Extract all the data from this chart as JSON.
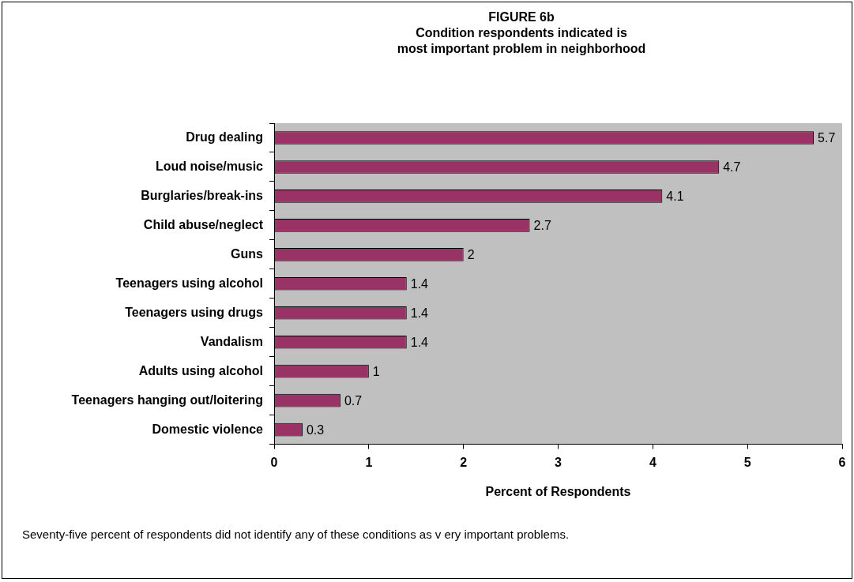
{
  "chart_data": {
    "type": "bar",
    "orientation": "horizontal",
    "title": "FIGURE 6b",
    "subtitle": "Condition respondents indicated is\nmost important problem in neighborhood",
    "xlabel": "Percent of Respondents",
    "categories": [
      "Drug dealing",
      "Loud noise/music",
      "Burglaries/break-ins",
      "Child abuse/neglect",
      "Guns",
      "Teenagers using alcohol",
      "Teenagers using drugs",
      "Vandalism",
      "Adults using alcohol",
      "Teenagers hanging out/loitering",
      "Domestic violence"
    ],
    "values": [
      5.7,
      4.7,
      4.1,
      2.7,
      2,
      1.4,
      1.4,
      1.4,
      1,
      0.7,
      0.3
    ],
    "color": "#993366",
    "xlim": [
      0,
      6
    ],
    "xticks": [
      0,
      1,
      2,
      3,
      4,
      5,
      6
    ],
    "grid": false,
    "legend": false,
    "data_labels": true,
    "annotations": [
      "Seventy-five percent of respondents did not identify any of these conditions as v ery important problems."
    ]
  }
}
